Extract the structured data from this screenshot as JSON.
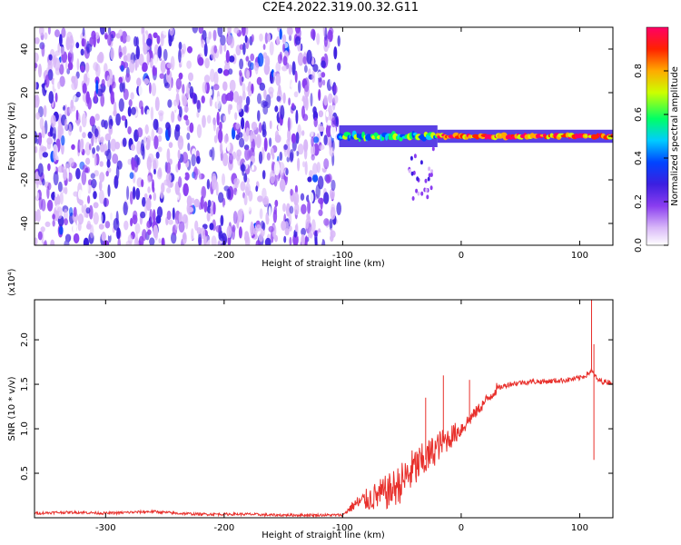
{
  "title": "C2E4.2022.319.00.32.G11",
  "colors": {
    "snr_line": "#e8302c",
    "colormap": [
      "#ffffff",
      "#d9b8f8",
      "#8a3df0",
      "#3c1fe0",
      "#0044ff",
      "#00ccff",
      "#00ff66",
      "#ccff00",
      "#ffaa00",
      "#ff2200",
      "#ff0066"
    ]
  },
  "chart_data": [
    {
      "type": "heatmap",
      "xlabel": "Height of straight line (km)",
      "ylabel": "Frequency (Hz)",
      "xlim": [
        -360,
        128
      ],
      "ylim": [
        -50,
        50
      ],
      "xticks": [
        -300,
        -200,
        -100,
        0,
        100
      ],
      "yticks": [
        -40,
        -20,
        0,
        20,
        40
      ],
      "colorbar": {
        "label": "Normalized spectral amplitude",
        "range": [
          0.0,
          1.0
        ],
        "ticks": [
          "0.0",
          "0.2",
          "0.4",
          "0.6",
          "0.8"
        ]
      },
      "regions": [
        {
          "x_range": [
            -360,
            -103
          ],
          "freq_range": [
            -50,
            50
          ],
          "amplitude": 0.15,
          "pattern": "broadband noise"
        },
        {
          "x_range": [
            -103,
            -20
          ],
          "center_freq": 0,
          "half_width": 5,
          "amplitude": 0.5
        },
        {
          "x_range": [
            -20,
            128
          ],
          "center_freq": 0,
          "half_width": 3,
          "amplitude": 0.85
        }
      ]
    },
    {
      "type": "line",
      "xlabel": "Height of straight line (km)",
      "ylabel": "SNR (10 * v/v)",
      "scale_label": "(x10⁴)",
      "xlim": [
        -360,
        128
      ],
      "ylim": [
        0,
        2.45
      ],
      "xticks": [
        -300,
        -200,
        -100,
        0,
        100
      ],
      "yticks": [
        0.5,
        1.0,
        1.5,
        2.0
      ],
      "series": [
        {
          "x": [
            -360,
            -340,
            -320,
            -300,
            -280,
            -260,
            -240,
            -220,
            -200,
            -180,
            -160,
            -140,
            -120,
            -100,
            -90,
            -80,
            -70,
            -60,
            -50,
            -40,
            -30,
            -20,
            -10,
            0,
            10,
            20,
            30,
            40,
            50,
            60,
            70,
            80,
            90,
            100,
            105,
            110,
            115,
            120,
            128
          ],
          "y": [
            0.05,
            0.06,
            0.06,
            0.05,
            0.06,
            0.07,
            0.05,
            0.04,
            0.04,
            0.04,
            0.03,
            0.03,
            0.03,
            0.03,
            0.15,
            0.2,
            0.25,
            0.3,
            0.4,
            0.55,
            0.65,
            0.8,
            0.9,
            1.0,
            1.15,
            1.3,
            1.45,
            1.5,
            1.52,
            1.53,
            1.53,
            1.54,
            1.55,
            1.57,
            1.6,
            1.65,
            1.55,
            1.53,
            1.52
          ]
        }
      ],
      "spikes": [
        {
          "x": -30,
          "y": 1.35
        },
        {
          "x": -15,
          "y": 1.6
        },
        {
          "x": 7,
          "y": 1.55
        },
        {
          "x": 110,
          "y": 2.45
        },
        {
          "x": 112,
          "y": 1.95
        },
        {
          "x": 112,
          "y": 0.65
        }
      ]
    }
  ]
}
